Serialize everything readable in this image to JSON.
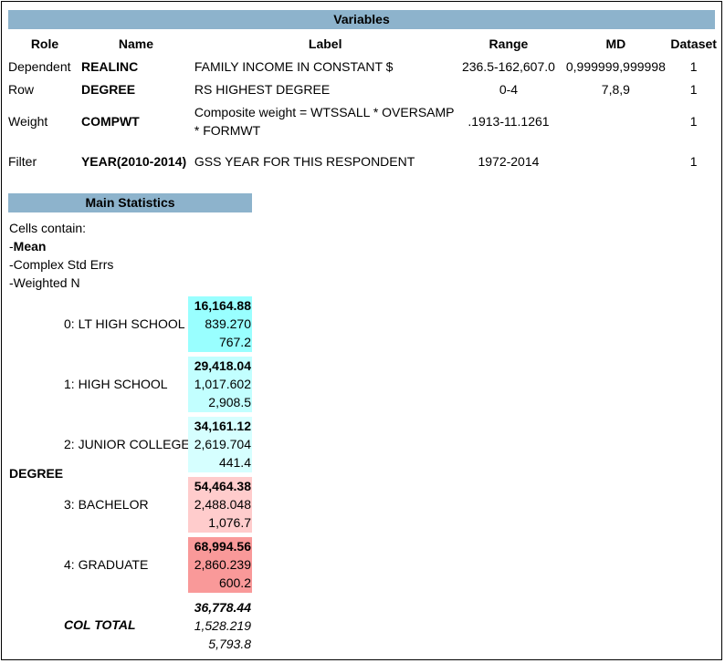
{
  "variables": {
    "title": "Variables",
    "headers": {
      "role": "Role",
      "name": "Name",
      "label": "Label",
      "range": "Range",
      "md": "MD",
      "dataset": "Dataset"
    },
    "rows": [
      {
        "role": "Dependent",
        "name": "REALINC",
        "label": "FAMILY INCOME IN CONSTANT $",
        "range": "236.5-162,607.0",
        "md": "0,999999,999998",
        "dataset": "1"
      },
      {
        "role": "Row",
        "name": "DEGREE",
        "label": "RS HIGHEST DEGREE",
        "range": "0-4",
        "md": "7,8,9",
        "dataset": "1"
      },
      {
        "role": "Weight",
        "name": "COMPWT",
        "label": "Composite weight = WTSSALL * OVERSAMP * FORMWT",
        "range": ".1913-11.1261",
        "md": "",
        "dataset": "1"
      },
      {
        "role": "Filter",
        "name": "YEAR(2010-2014)",
        "label": "GSS YEAR FOR THIS RESPONDENT",
        "range": "1972-2014",
        "md": "",
        "dataset": "1"
      }
    ]
  },
  "main_statistics": {
    "title": "Main Statistics",
    "cells_contain": [
      "Cells contain:",
      "-",
      "Mean",
      "-Complex Std Errs",
      "-Weighted N"
    ],
    "row_variable": "DEGREE",
    "rows": [
      {
        "label": "0: LT HIGH SCHOOL",
        "mean": "16,164.88",
        "se": "839.270",
        "n": "767.2",
        "color": "#99ffff"
      },
      {
        "label": "1: HIGH SCHOOL",
        "mean": "29,418.04",
        "se": "1,017.602",
        "n": "2,908.5",
        "color": "#c2ffff"
      },
      {
        "label": "2: JUNIOR COLLEGE",
        "mean": "34,161.12",
        "se": "2,619.704",
        "n": "441.4",
        "color": "#d6ffff"
      },
      {
        "label": "3: BACHELOR",
        "mean": "54,464.38",
        "se": "2,488.048",
        "n": "1,076.7",
        "color": "#ffcccc"
      },
      {
        "label": "4: GRADUATE",
        "mean": "68,994.56",
        "se": "2,860.239",
        "n": "600.2",
        "color": "#f99999"
      }
    ],
    "total": {
      "label": "COL TOTAL",
      "mean": "36,778.44",
      "se": "1,528.219",
      "n": "5,793.8"
    }
  }
}
